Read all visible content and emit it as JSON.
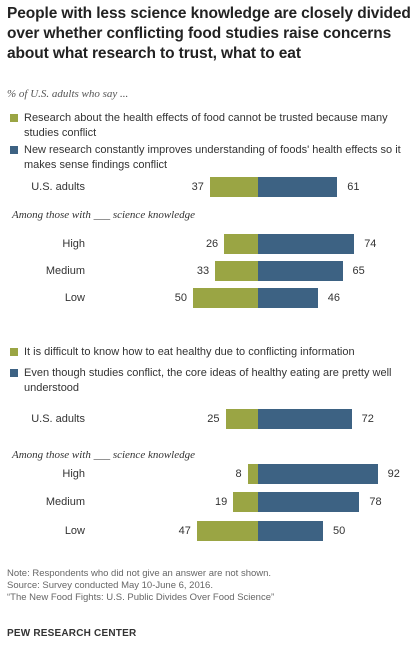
{
  "title": "People with less science knowledge are closely divided over whether conflicting food studies raise concerns about what research to trust, what to eat",
  "subtitle": "% of U.S. adults who say ...",
  "colors": {
    "green": "#9aa544",
    "blue": "#3d6283"
  },
  "chart_data": [
    {
      "type": "bar",
      "orientation": "horizontal-diverging",
      "legend": [
        "Research about the health effects of food cannot be trusted because many studies conflict",
        "New research constantly improves understanding of foods' health effects so it makes sense findings conflict"
      ],
      "overall": {
        "label": "U.S. adults",
        "values": [
          37,
          61
        ]
      },
      "group_heading": "Among those with ___ science knowledge",
      "groups": [
        {
          "label": "High",
          "values": [
            26,
            74
          ]
        },
        {
          "label": "Medium",
          "values": [
            33,
            65
          ]
        },
        {
          "label": "Low",
          "values": [
            50,
            46
          ]
        }
      ]
    },
    {
      "type": "bar",
      "orientation": "horizontal-diverging",
      "legend": [
        "It is difficult to know how to eat healthy due to conflicting information",
        "Even though studies conflict, the core ideas of healthy eating are pretty well understood"
      ],
      "overall": {
        "label": "U.S. adults",
        "values": [
          25,
          72
        ]
      },
      "group_heading": "Among those with ___ science knowledge",
      "groups": [
        {
          "label": "High",
          "values": [
            8,
            92
          ]
        },
        {
          "label": "Medium",
          "values": [
            19,
            78
          ]
        },
        {
          "label": "Low",
          "values": [
            47,
            50
          ]
        }
      ]
    }
  ],
  "notes": [
    "Note: Respondents who did not give an answer are not shown.",
    "Source: Survey conducted May 10-June 6, 2016.",
    "“The New Food Fights: U.S. Public Divides Over Food Science”"
  ],
  "brand": "PEW RESEARCH CENTER"
}
